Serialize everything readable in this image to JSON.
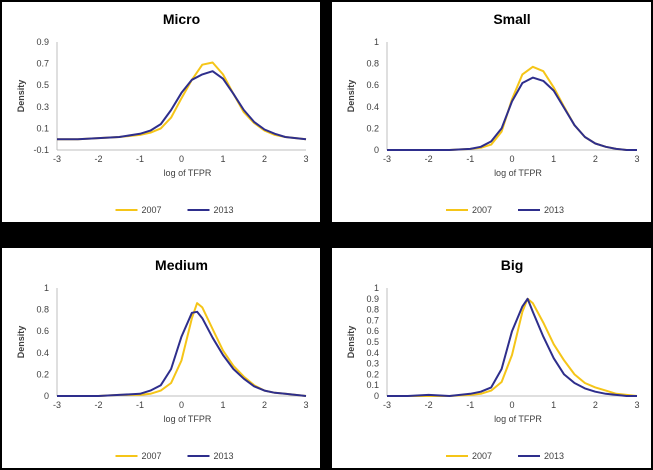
{
  "colors": {
    "series_2007": "#F5C518",
    "series_2013": "#2E2E8C",
    "axis": "#BFBFBF"
  },
  "chart_data": [
    {
      "type": "line",
      "title": "Micro",
      "xlabel": "log of TFPR",
      "ylabel": "Density",
      "xlim": [
        -3,
        3
      ],
      "ylim": [
        -0.1,
        0.9
      ],
      "xticks": [
        "-3",
        "-2",
        "-1",
        "0",
        "1",
        "2",
        "3"
      ],
      "yticks": [
        "-0.1",
        "0.1",
        "0.3",
        "0.5",
        "0.7",
        "0.9"
      ],
      "legend_position": "bottom",
      "grid": false,
      "x": [
        -3,
        -2.5,
        -2,
        -1.5,
        -1,
        -0.75,
        -0.5,
        -0.25,
        0,
        0.25,
        0.5,
        0.75,
        1,
        1.25,
        1.5,
        1.75,
        2,
        2.25,
        2.5,
        2.75,
        3
      ],
      "series": [
        {
          "name": "2007",
          "values": [
            0.0,
            0.0,
            0.01,
            0.02,
            0.04,
            0.06,
            0.1,
            0.2,
            0.38,
            0.55,
            0.69,
            0.71,
            0.6,
            0.42,
            0.25,
            0.15,
            0.08,
            0.04,
            0.02,
            0.01,
            0.0
          ]
        },
        {
          "name": "2013",
          "values": [
            0.0,
            0.0,
            0.01,
            0.02,
            0.05,
            0.08,
            0.14,
            0.27,
            0.43,
            0.55,
            0.6,
            0.63,
            0.56,
            0.42,
            0.27,
            0.16,
            0.09,
            0.05,
            0.02,
            0.01,
            0.0
          ]
        }
      ]
    },
    {
      "type": "line",
      "title": "Small",
      "xlabel": "log of TFPR",
      "ylabel": "Density",
      "xlim": [
        -3,
        3
      ],
      "ylim": [
        0,
        1
      ],
      "xticks": [
        "-3",
        "-2",
        "-1",
        "0",
        "1",
        "2",
        "3"
      ],
      "yticks": [
        "0",
        "0.2",
        "0.4",
        "0.6",
        "0.8",
        "1"
      ],
      "legend_position": "bottom",
      "grid": false,
      "x": [
        -3,
        -2.5,
        -2,
        -1.5,
        -1,
        -0.75,
        -0.5,
        -0.25,
        0,
        0.25,
        0.5,
        0.75,
        1,
        1.25,
        1.5,
        1.75,
        2,
        2.25,
        2.5,
        2.75,
        3
      ],
      "series": [
        {
          "name": "2007",
          "values": [
            0.0,
            0.0,
            0.0,
            0.0,
            0.01,
            0.02,
            0.05,
            0.17,
            0.47,
            0.7,
            0.77,
            0.73,
            0.58,
            0.4,
            0.23,
            0.12,
            0.06,
            0.03,
            0.01,
            0.0,
            0.0
          ]
        },
        {
          "name": "2013",
          "values": [
            0.0,
            0.0,
            0.0,
            0.0,
            0.01,
            0.03,
            0.08,
            0.2,
            0.45,
            0.62,
            0.67,
            0.64,
            0.55,
            0.39,
            0.23,
            0.12,
            0.06,
            0.03,
            0.01,
            0.0,
            0.0
          ]
        }
      ]
    },
    {
      "type": "line",
      "title": "Medium",
      "xlabel": "log of TFPR",
      "ylabel": "Density",
      "xlim": [
        -3,
        3
      ],
      "ylim": [
        0,
        1
      ],
      "xticks": [
        "-3",
        "-2",
        "-1",
        "0",
        "1",
        "2",
        "3"
      ],
      "yticks": [
        "0",
        "0.2",
        "0.4",
        "0.6",
        "0.8",
        "1"
      ],
      "legend_position": "bottom",
      "grid": false,
      "x": [
        -3,
        -2.5,
        -2,
        -1.5,
        -1,
        -0.75,
        -0.5,
        -0.25,
        0,
        0.25,
        0.375,
        0.5,
        0.75,
        1,
        1.25,
        1.5,
        1.75,
        2,
        2.25,
        2.5,
        2.75,
        3
      ],
      "series": [
        {
          "name": "2007",
          "values": [
            0.0,
            0.0,
            0.0,
            0.01,
            0.01,
            0.02,
            0.05,
            0.12,
            0.33,
            0.72,
            0.86,
            0.82,
            0.62,
            0.42,
            0.28,
            0.18,
            0.1,
            0.05,
            0.03,
            0.02,
            0.01,
            0.0
          ]
        },
        {
          "name": "2013",
          "values": [
            0.0,
            0.0,
            0.0,
            0.01,
            0.02,
            0.05,
            0.1,
            0.25,
            0.55,
            0.77,
            0.78,
            0.72,
            0.54,
            0.38,
            0.25,
            0.16,
            0.09,
            0.05,
            0.03,
            0.02,
            0.01,
            0.0
          ]
        }
      ]
    },
    {
      "type": "line",
      "title": "Big",
      "xlabel": "log of TFPR",
      "ylabel": "Density",
      "xlim": [
        -3,
        3
      ],
      "ylim": [
        0,
        1
      ],
      "xticks": [
        "-3",
        "-2",
        "-1",
        "0",
        "1",
        "2",
        "3"
      ],
      "yticks": [
        "0",
        "0.1",
        "0.2",
        "0.3",
        "0.4",
        "0.5",
        "0.6",
        "0.7",
        "0.8",
        "0.9",
        "1"
      ],
      "legend_position": "bottom",
      "grid": false,
      "x": [
        -3,
        -2.5,
        -2,
        -1.5,
        -1,
        -0.75,
        -0.5,
        -0.25,
        0,
        0.25,
        0.375,
        0.5,
        0.75,
        1,
        1.25,
        1.5,
        1.75,
        2,
        2.25,
        2.5,
        2.75,
        3
      ],
      "series": [
        {
          "name": "2007",
          "values": [
            0.0,
            0.0,
            0.0,
            0.0,
            0.01,
            0.02,
            0.05,
            0.13,
            0.38,
            0.78,
            0.9,
            0.86,
            0.68,
            0.48,
            0.33,
            0.2,
            0.12,
            0.08,
            0.05,
            0.02,
            0.01,
            0.0
          ]
        },
        {
          "name": "2013",
          "values": [
            0.0,
            0.0,
            0.01,
            0.0,
            0.02,
            0.04,
            0.08,
            0.25,
            0.6,
            0.83,
            0.9,
            0.78,
            0.55,
            0.35,
            0.2,
            0.12,
            0.07,
            0.04,
            0.02,
            0.01,
            0.0,
            0.0
          ]
        }
      ]
    }
  ]
}
